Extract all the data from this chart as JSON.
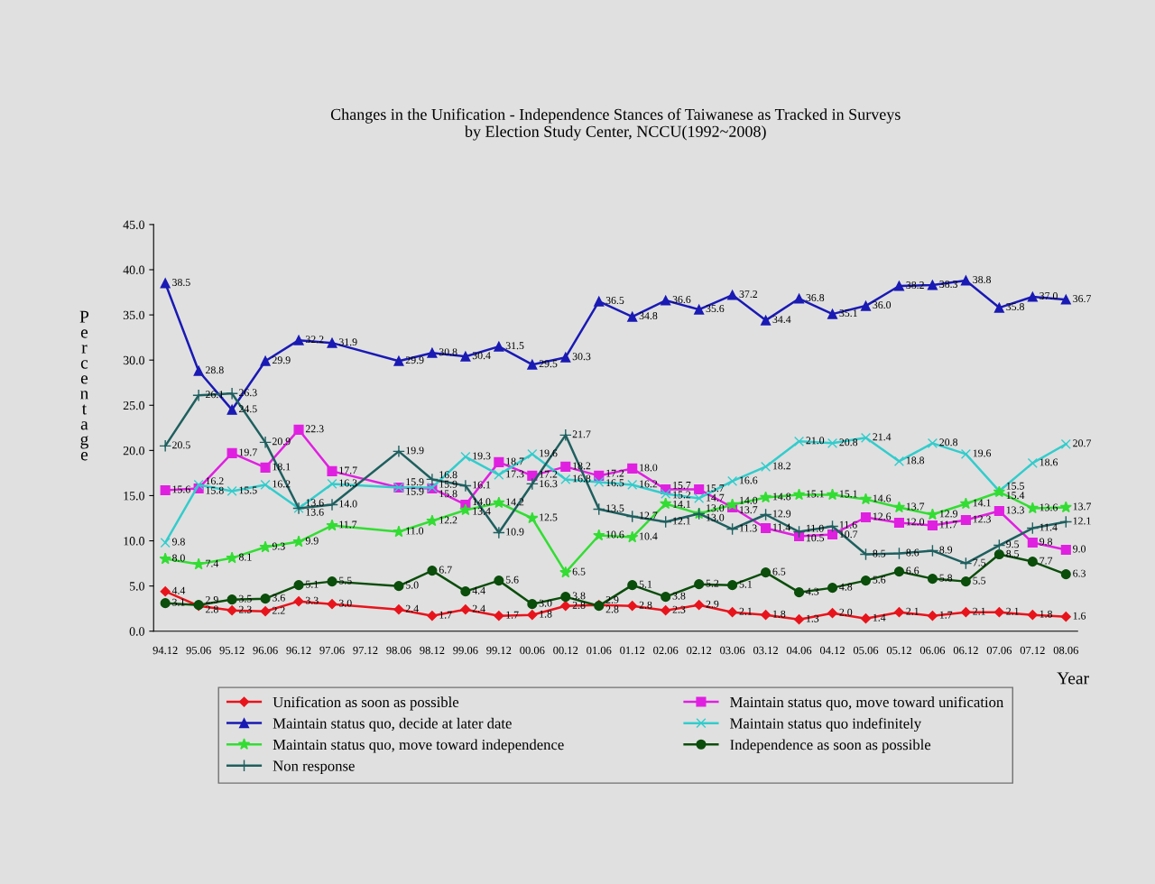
{
  "chart_data": {
    "type": "line",
    "title": "Changes in the Unification - Independence Stances of Taiwanese as Tracked in Surveys\nby Election Study Center, NCCU(1992~2008)",
    "xlabel": "Year",
    "ylabel": "Percentage",
    "categories": [
      "94.12",
      "95.06",
      "95.12",
      "96.06",
      "96.12",
      "97.06",
      "97.12",
      "98.06",
      "98.12",
      "99.06",
      "99.12",
      "00.06",
      "00.12",
      "01.06",
      "01.12",
      "02.06",
      "02.12",
      "03.06",
      "03.12",
      "04.06",
      "04.12",
      "05.06",
      "05.12",
      "06.06",
      "06.12",
      "07.06",
      "07.12",
      "08.06"
    ],
    "ylim": [
      0,
      45
    ],
    "yticks": [
      {
        "value": 0,
        "label": "0.0"
      },
      {
        "value": 5,
        "label": "5.0"
      },
      {
        "value": 10,
        "label": "10.0"
      },
      {
        "value": 15,
        "label": "15.0"
      },
      {
        "value": 20,
        "label": "20.0"
      },
      {
        "value": 25,
        "label": "25.0"
      },
      {
        "value": 30,
        "label": "30.0"
      },
      {
        "value": 35,
        "label": "35.0"
      },
      {
        "value": 40,
        "label": "40.0"
      },
      {
        "value": 45,
        "label": "45.0"
      }
    ],
    "grid": false,
    "legend": "bottom",
    "line_style": "solid",
    "series": [
      {
        "name": "Unification as soon as possible",
        "color": "#e8141c",
        "marker": "diamond",
        "values": [
          4.4,
          2.8,
          2.3,
          2.2,
          3.3,
          3.0,
          null,
          2.4,
          1.7,
          2.4,
          1.7,
          1.8,
          2.8,
          2.9,
          2.8,
          2.3,
          2.9,
          2.1,
          1.8,
          1.3,
          2.0,
          1.4,
          2.1,
          1.7,
          2.1,
          2.1,
          1.8,
          1.6
        ],
        "value_labels": [
          "4.4",
          "2.8",
          "2.3",
          "2.2",
          "3.3",
          "3.0",
          null,
          "2.4",
          "1.7",
          "2.4",
          "1.7",
          "1.8",
          "2.8",
          "2.9",
          "2.8",
          "2.3",
          "2.9",
          "2.1",
          "1.8",
          "1.3",
          "2.0",
          "1.4",
          "2.1",
          "1.7",
          "2.1",
          "2.1",
          "1.8",
          "1.6"
        ]
      },
      {
        "name": "Maintain status quo, move toward unification",
        "color": "#e020e0",
        "marker": "square",
        "values": [
          15.6,
          15.8,
          19.7,
          18.1,
          22.3,
          17.7,
          null,
          15.9,
          15.8,
          14.0,
          18.7,
          17.2,
          18.2,
          17.2,
          18.0,
          15.7,
          15.7,
          13.7,
          11.4,
          10.5,
          10.7,
          12.6,
          12.0,
          11.7,
          12.3,
          13.3,
          9.8,
          9.0
        ],
        "value_labels": [
          "15.6",
          "15.8",
          "19.7",
          "18.1",
          "22.3",
          "17.7",
          null,
          "15.9",
          "15.8",
          "14.0",
          "18.7",
          "17.2",
          "18.2",
          "17.2",
          "18.0",
          "15.7",
          "15.7",
          "13.7",
          "11.4",
          "10.5",
          "10.7",
          "12.6",
          "12.0",
          "11.7",
          "12.3",
          "13.3",
          "9.8",
          "9.0"
        ]
      },
      {
        "name": "Maintain status quo, decide at later date",
        "color": "#1a1ab4",
        "marker": "triangle",
        "values": [
          38.5,
          28.8,
          24.5,
          29.9,
          32.2,
          31.9,
          null,
          29.9,
          30.8,
          30.4,
          31.5,
          29.5,
          30.3,
          36.5,
          34.8,
          36.6,
          35.6,
          37.2,
          34.4,
          36.8,
          35.1,
          36.0,
          38.2,
          38.3,
          38.8,
          35.8,
          37.0,
          36.7
        ],
        "value_labels": [
          "38.5",
          "28.8",
          "24.5",
          "29.9",
          "32.2",
          "31.9",
          null,
          "29.9",
          "30.8",
          "30.4",
          "31.5",
          "29.5",
          "30.3",
          "36.5",
          "34.8",
          "36.6",
          "35.6",
          "37.2",
          "34.4",
          "36.8",
          "35.1",
          "36.0",
          "38.2",
          "38.3",
          "38.8",
          "35.8",
          "37.0",
          "36.7"
        ]
      },
      {
        "name": "Maintain status quo indefinitely",
        "color": "#33cccc",
        "marker": "cross",
        "values": [
          9.8,
          16.2,
          15.5,
          16.2,
          13.6,
          16.3,
          null,
          15.9,
          15.9,
          19.3,
          17.3,
          19.6,
          16.8,
          16.5,
          16.2,
          15.2,
          14.7,
          16.6,
          18.2,
          21.0,
          20.8,
          21.4,
          18.8,
          20.8,
          19.6,
          15.5,
          18.6,
          20.7
        ],
        "value_labels": [
          "9.8",
          "16.2",
          "15.5",
          "16.2",
          "13.6",
          "16.3",
          null,
          "15.9",
          "15.9",
          "19.3",
          "17.3",
          "19.6",
          "16.8",
          "16.5",
          "16.2",
          "15.2",
          "14.7",
          "16.6",
          "18.2",
          "21.0",
          "20.8",
          "21.4",
          "18.8",
          "20.8",
          "19.6",
          "15.5",
          "18.6",
          "20.7"
        ]
      },
      {
        "name": "Maintain status quo, move toward independence",
        "color": "#33dd33",
        "marker": "star",
        "values": [
          8.0,
          7.4,
          8.1,
          9.3,
          9.9,
          11.7,
          null,
          11.0,
          12.2,
          13.4,
          14.2,
          12.5,
          6.5,
          10.6,
          10.4,
          14.1,
          13.0,
          14.0,
          14.8,
          15.1,
          15.1,
          14.6,
          13.7,
          12.9,
          14.1,
          15.4,
          13.6,
          13.7
        ],
        "value_labels": [
          "8.0",
          "7.4",
          "8.1",
          "9.3",
          "9.9",
          "11.7",
          null,
          "11.0",
          "12.2",
          "13.4",
          "14.2",
          "12.5",
          "6.5",
          "10.6",
          "10.4",
          "14.1",
          "13.0",
          "14.0",
          "14.8",
          "15.1",
          "15.1",
          "14.6",
          "13.7",
          "12.9",
          "14.1",
          "15.4",
          "13.6",
          "13.7"
        ]
      },
      {
        "name": "Independence as soon as possible",
        "color": "#0b4d0b",
        "marker": "circle",
        "values": [
          3.1,
          2.9,
          3.5,
          3.6,
          5.1,
          5.5,
          null,
          5.0,
          6.7,
          4.4,
          5.6,
          3.0,
          3.8,
          2.8,
          5.1,
          3.8,
          5.2,
          5.1,
          6.5,
          4.3,
          4.8,
          5.6,
          6.6,
          5.8,
          5.5,
          8.5,
          7.7,
          6.3
        ],
        "value_labels": [
          "3.1",
          "2.9",
          "3.5",
          "3.6",
          "5.1",
          "5.5",
          null,
          "5.0",
          "6.7",
          "4.4",
          "5.6",
          "3.0",
          "3.8",
          "2.8",
          "5.1",
          "3.8",
          "5.2",
          "5.1",
          "6.5",
          "4.3",
          "4.8",
          "5.6",
          "6.6",
          "5.8",
          "5.5",
          "8.5",
          "7.7",
          "6.3"
        ]
      },
      {
        "name": "Non response",
        "color": "#1f5f5f",
        "marker": "plus",
        "values": [
          20.5,
          26.1,
          26.3,
          20.9,
          13.6,
          14.0,
          null,
          19.9,
          16.8,
          16.1,
          10.9,
          16.3,
          21.7,
          13.5,
          12.7,
          12.1,
          13.0,
          11.3,
          12.9,
          11.0,
          11.6,
          8.5,
          8.6,
          8.9,
          7.5,
          9.5,
          11.4,
          12.1
        ],
        "value_labels": [
          "20.5",
          "26.1",
          "26.3",
          "20.9",
          "13.6",
          "14.0",
          null,
          "19.9",
          "16.8",
          "16.1",
          "10.9",
          "16.3",
          "21.7",
          "13.5",
          "12.7",
          "12.1",
          "13.0",
          "11.3",
          "12.9",
          "11.0",
          "11.6",
          "8.5",
          "8.6",
          "8.9",
          "7.5",
          "9.5",
          "11.4",
          "12.1"
        ]
      }
    ]
  }
}
